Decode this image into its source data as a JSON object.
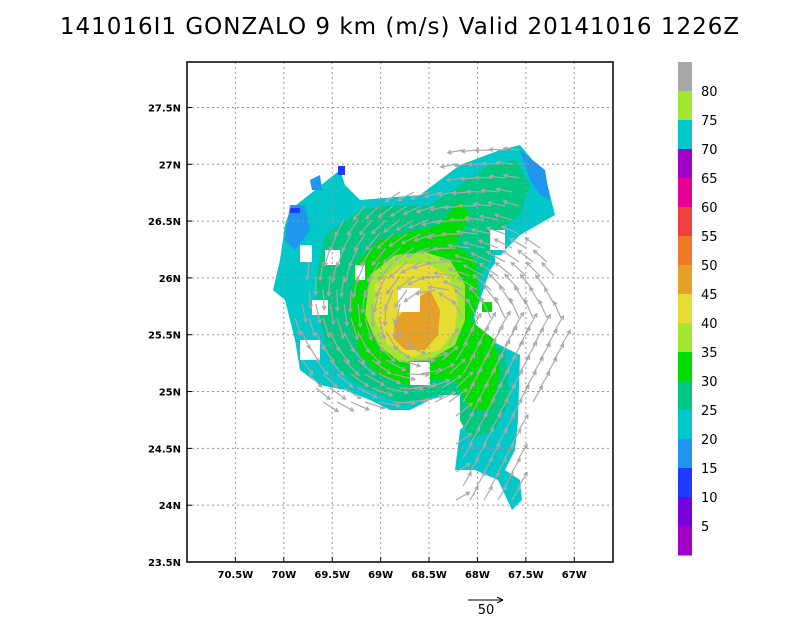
{
  "title": "141016I1 GONZALO 9 km (m/s) Valid 20141016 1226Z",
  "map": {
    "x_ticks": [
      "70.5W",
      "70W",
      "69.5W",
      "69W",
      "68.5W",
      "68W",
      "67.5W",
      "67W"
    ],
    "y_ticks": [
      "27.5N",
      "27N",
      "26.5N",
      "26N",
      "25.5N",
      "25N",
      "24.5N",
      "24N",
      "23.5N"
    ],
    "lon_range": [
      -71.0,
      -66.6
    ],
    "lat_range": [
      23.5,
      27.9
    ],
    "storm_center": [
      -68.5,
      25.6
    ],
    "grid": true
  },
  "colorbar": {
    "labels": [
      "80",
      "75",
      "70",
      "65",
      "60",
      "55",
      "50",
      "45",
      "40",
      "35",
      "30",
      "25",
      "20",
      "15",
      "10",
      "5"
    ],
    "colors": [
      "#a8a8a8",
      "#a0e632",
      "#00c8c8",
      "#a000c8",
      "#e60096",
      "#f04040",
      "#f07828",
      "#e6a028",
      "#e6dc32",
      "#a0e632",
      "#00dc00",
      "#00c882",
      "#00c8c8",
      "#1e96f0",
      "#1e3cff",
      "#7800dc",
      "#a000c8"
    ]
  },
  "reference_vector": {
    "label": "50"
  },
  "colors": {
    "vector": "#a9a9a9",
    "grid": "#999999"
  }
}
